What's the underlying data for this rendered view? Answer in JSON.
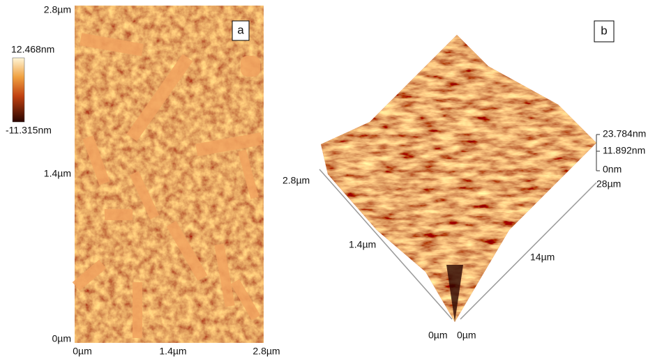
{
  "panel_a": {
    "label": "a",
    "y_axis_labels": [
      "2.8µm",
      "1.4µm",
      "0µm"
    ],
    "x_axis_labels": [
      "0µm",
      "1.4µm",
      "2.8µm"
    ],
    "colorbar_labels": [
      "12.468nm",
      "-11.315nm"
    ]
  },
  "panel_b": {
    "label": "b",
    "left_axis_labels": [
      "2.8µm",
      "1.4µm",
      "0µm"
    ],
    "right_axis_labels": [
      "0µm",
      "14µm",
      "28µm"
    ],
    "z_axis_labels": [
      "23.784nm",
      "11.892nm",
      "0nm"
    ]
  }
}
